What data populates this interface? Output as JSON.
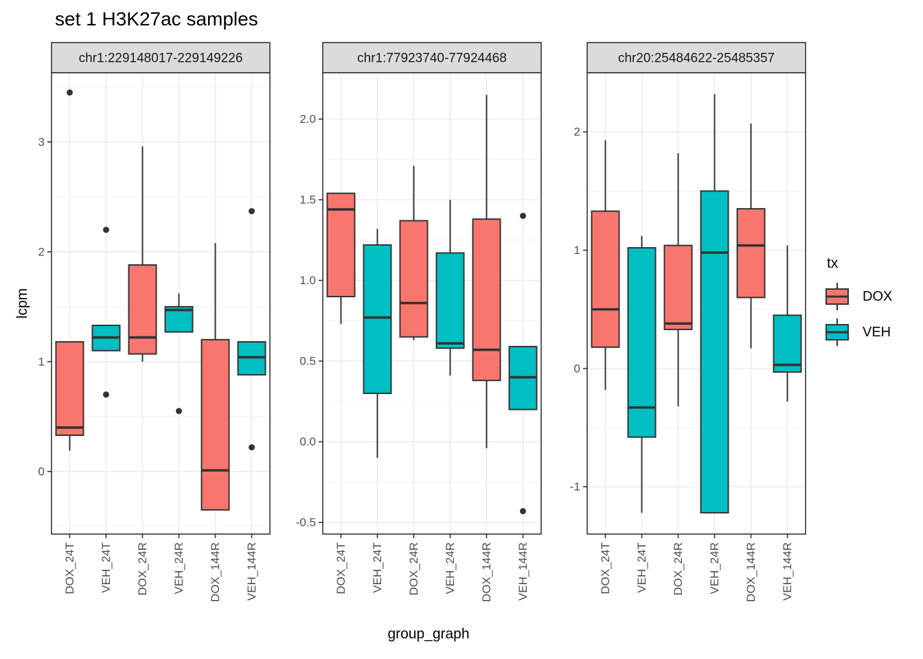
{
  "title": "set 1 H3K27ac samples",
  "axes": {
    "y_title": "lcpm",
    "x_title": "group_graph"
  },
  "categories": [
    "DOX_24T",
    "VEH_24T",
    "DOX_24R",
    "VEH_24R",
    "DOX_144R",
    "VEH_144R"
  ],
  "legend": {
    "title": "tx",
    "entries": [
      {
        "label": "DOX",
        "color": "#F8766D"
      },
      {
        "label": "VEH",
        "color": "#00BFC4"
      }
    ]
  },
  "colors": {
    "dox": "#F8766D",
    "veh": "#00BFC4",
    "box_stroke": "#333333",
    "outlier": "#333333",
    "grid_major": "#EBEBEB",
    "grid_minor": "#EFEFEF",
    "panel_bg": "#FFFFFF",
    "panel_border": "#333333",
    "strip_bg": "#DBDBDB",
    "strip_text": "#1A1A1A",
    "tick_text": "#4D4D4D"
  },
  "chart_data": {
    "type": "boxplot",
    "x_categories": [
      "DOX_24T",
      "VEH_24T",
      "DOX_24R",
      "VEH_24R",
      "DOX_144R",
      "VEH_144R"
    ],
    "series_colors": {
      "DOX": "#F8766D",
      "VEH": "#00BFC4"
    },
    "facets": [
      {
        "label": "chr1:229148017-229149226",
        "ylim": [
          -0.57,
          3.63
        ],
        "yticks": [
          {
            "v": 0,
            "label": "0"
          },
          {
            "v": 1,
            "label": "1"
          },
          {
            "v": 2,
            "label": "2"
          },
          {
            "v": 3,
            "label": "3"
          }
        ],
        "minor_ticks": [
          -0.5,
          0.5,
          1.5,
          2.5,
          3.5
        ],
        "boxes": [
          {
            "group": "DOX_24T",
            "tx": "DOX",
            "lo": 0.19,
            "q1": 0.33,
            "med": 0.4,
            "q3": 1.18,
            "hi": 1.18,
            "outliers": [
              3.45
            ]
          },
          {
            "group": "VEH_24T",
            "tx": "VEH",
            "lo": 1.1,
            "q1": 1.1,
            "med": 1.22,
            "q3": 1.33,
            "hi": 1.33,
            "outliers": [
              2.2,
              0.7
            ]
          },
          {
            "group": "DOX_24R",
            "tx": "DOX",
            "lo": 1.0,
            "q1": 1.07,
            "med": 1.22,
            "q3": 1.88,
            "hi": 2.96,
            "outliers": []
          },
          {
            "group": "VEH_24R",
            "tx": "VEH",
            "lo": 1.27,
            "q1": 1.27,
            "med": 1.47,
            "q3": 1.5,
            "hi": 1.62,
            "outliers": [
              0.55
            ]
          },
          {
            "group": "DOX_144R",
            "tx": "DOX",
            "lo": -0.35,
            "q1": -0.35,
            "med": 0.01,
            "q3": 1.2,
            "hi": 2.08,
            "outliers": []
          },
          {
            "group": "VEH_144R",
            "tx": "VEH",
            "lo": 0.88,
            "q1": 0.88,
            "med": 1.04,
            "q3": 1.18,
            "hi": 1.18,
            "outliers": [
              2.37,
              0.22
            ]
          }
        ]
      },
      {
        "label": "chr1:77923740-77924468",
        "ylim": [
          -0.572,
          2.287
        ],
        "yticks": [
          {
            "v": -0.5,
            "label": "-0.5"
          },
          {
            "v": 0.0,
            "label": "0.0"
          },
          {
            "v": 0.5,
            "label": "0.5"
          },
          {
            "v": 1.0,
            "label": "1.0"
          },
          {
            "v": 1.5,
            "label": "1.5"
          },
          {
            "v": 2.0,
            "label": "2.0"
          }
        ],
        "minor_ticks": [
          -0.25,
          0.25,
          0.75,
          1.25,
          1.75,
          2.25
        ],
        "boxes": [
          {
            "group": "DOX_24T",
            "tx": "DOX",
            "lo": 0.73,
            "q1": 0.9,
            "med": 1.44,
            "q3": 1.54,
            "hi": 1.54,
            "outliers": []
          },
          {
            "group": "VEH_24T",
            "tx": "VEH",
            "lo": -0.1,
            "q1": 0.3,
            "med": 0.77,
            "q3": 1.22,
            "hi": 1.32,
            "outliers": []
          },
          {
            "group": "DOX_24R",
            "tx": "DOX",
            "lo": 0.63,
            "q1": 0.65,
            "med": 0.86,
            "q3": 1.37,
            "hi": 1.71,
            "outliers": []
          },
          {
            "group": "VEH_24R",
            "tx": "VEH",
            "lo": 0.41,
            "q1": 0.58,
            "med": 0.61,
            "q3": 1.17,
            "hi": 1.5,
            "outliers": []
          },
          {
            "group": "DOX_144R",
            "tx": "DOX",
            "lo": -0.04,
            "q1": 0.38,
            "med": 0.57,
            "q3": 1.38,
            "hi": 2.15,
            "outliers": []
          },
          {
            "group": "VEH_144R",
            "tx": "VEH",
            "lo": 0.2,
            "q1": 0.2,
            "med": 0.4,
            "q3": 0.59,
            "hi": 0.59,
            "outliers": [
              1.4,
              -0.43
            ]
          }
        ]
      },
      {
        "label": "chr20:25484622-25485357",
        "ylim": [
          -1.4,
          2.5
        ],
        "yticks": [
          {
            "v": -1,
            "label": "-1"
          },
          {
            "v": 0,
            "label": "0"
          },
          {
            "v": 1,
            "label": "1"
          },
          {
            "v": 2,
            "label": "2"
          }
        ],
        "minor_ticks": [
          -0.5,
          0.5,
          1.5
        ],
        "boxes": [
          {
            "group": "DOX_24T",
            "tx": "DOX",
            "lo": -0.18,
            "q1": 0.18,
            "med": 0.5,
            "q3": 1.33,
            "hi": 1.93,
            "outliers": []
          },
          {
            "group": "VEH_24T",
            "tx": "VEH",
            "lo": -1.22,
            "q1": -0.58,
            "med": -0.33,
            "q3": 1.02,
            "hi": 1.12,
            "outliers": []
          },
          {
            "group": "DOX_24R",
            "tx": "DOX",
            "lo": -0.32,
            "q1": 0.33,
            "med": 0.38,
            "q3": 1.04,
            "hi": 1.82,
            "outliers": []
          },
          {
            "group": "VEH_24R",
            "tx": "VEH",
            "lo": -1.22,
            "q1": -1.22,
            "med": 0.98,
            "q3": 1.5,
            "hi": 2.32,
            "outliers": []
          },
          {
            "group": "DOX_144R",
            "tx": "DOX",
            "lo": 0.17,
            "q1": 0.6,
            "med": 1.04,
            "q3": 1.35,
            "hi": 2.07,
            "outliers": []
          },
          {
            "group": "VEH_144R",
            "tx": "VEH",
            "lo": -0.28,
            "q1": -0.03,
            "med": 0.03,
            "q3": 0.45,
            "hi": 1.04,
            "outliers": []
          }
        ]
      }
    ]
  }
}
